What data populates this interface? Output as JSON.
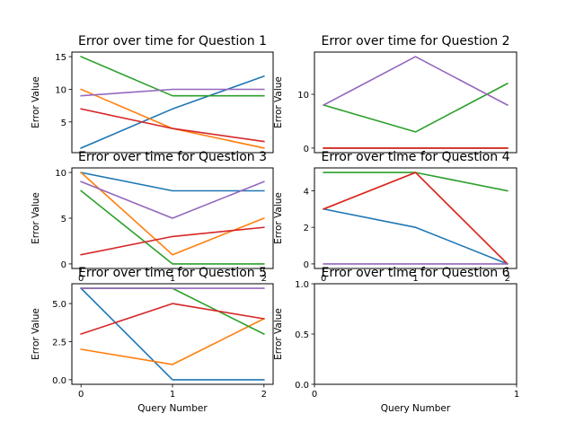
{
  "colors": [
    "#1f77b4",
    "#ff7f0e",
    "#2ca02c",
    "#d62728",
    "#9467bd"
  ],
  "chart_data": [
    {
      "type": "line",
      "title": "Error over time for Question 1",
      "xlabel": "",
      "ylabel": "Error Value",
      "x": [
        0,
        1,
        2
      ],
      "xticks": [],
      "yticks": [
        5,
        10,
        15
      ],
      "xlim": [
        -0.1,
        2.1
      ],
      "ylim": [
        0.3,
        15.7
      ],
      "series": [
        {
          "values": [
            1,
            7,
            12
          ]
        },
        {
          "values": [
            10,
            4,
            1
          ]
        },
        {
          "values": [
            15,
            9,
            9
          ]
        },
        {
          "values": [
            7,
            4,
            2
          ]
        },
        {
          "values": [
            9,
            10,
            10
          ]
        }
      ]
    },
    {
      "type": "line",
      "title": "Error over time for Question 2",
      "xlabel": "",
      "ylabel": "Error Value",
      "x": [
        0,
        1,
        2
      ],
      "xticks": [],
      "yticks": [
        0,
        10
      ],
      "xlim": [
        -0.1,
        2.1
      ],
      "ylim": [
        -0.85,
        17.85
      ],
      "series": [
        {
          "values": [
            0,
            0,
            0
          ]
        },
        {
          "values": [
            0,
            0,
            0
          ]
        },
        {
          "values": [
            8,
            3,
            12
          ]
        },
        {
          "values": [
            0,
            0,
            0
          ]
        },
        {
          "values": [
            8,
            17,
            8
          ]
        }
      ]
    },
    {
      "type": "line",
      "title": "Error over time for Question 3",
      "xlabel": "",
      "ylabel": "Error Value",
      "x": [
        0,
        1,
        2
      ],
      "xticks": [
        0,
        1,
        2
      ],
      "yticks": [
        0,
        5,
        10
      ],
      "xlim": [
        -0.1,
        2.1
      ],
      "ylim": [
        -0.5,
        10.5
      ],
      "series": [
        {
          "values": [
            10,
            8,
            8
          ]
        },
        {
          "values": [
            10,
            1,
            5
          ]
        },
        {
          "values": [
            8,
            0,
            0
          ]
        },
        {
          "values": [
            1,
            3,
            4
          ]
        },
        {
          "values": [
            9,
            5,
            9
          ]
        }
      ]
    },
    {
      "type": "line",
      "title": "Error over time for Question 4",
      "xlabel": "",
      "ylabel": "Error Value",
      "x": [
        0,
        1,
        2
      ],
      "xticks": [
        0,
        1,
        2
      ],
      "yticks": [
        0,
        2,
        4
      ],
      "xlim": [
        -0.1,
        2.1
      ],
      "ylim": [
        -0.25,
        5.25
      ],
      "series": [
        {
          "values": [
            3,
            2,
            0
          ]
        },
        {
          "values": [
            3,
            5,
            0
          ]
        },
        {
          "values": [
            5,
            5,
            4
          ]
        },
        {
          "values": [
            3,
            5,
            0
          ]
        },
        {
          "values": [
            0,
            0,
            0
          ]
        }
      ]
    },
    {
      "type": "line",
      "title": "Error over time for Question 5",
      "xlabel": "Query Number",
      "ylabel": "Error Value",
      "x": [
        0,
        1,
        2
      ],
      "xticks": [
        0,
        1,
        2
      ],
      "yticks": [
        0.0,
        2.5,
        5.0
      ],
      "ytick_labels": [
        "0.0",
        "2.5",
        "5.0"
      ],
      "xlim": [
        -0.1,
        2.1
      ],
      "ylim": [
        -0.3,
        6.3
      ],
      "series": [
        {
          "values": [
            6,
            0,
            0
          ]
        },
        {
          "values": [
            2,
            1,
            4
          ]
        },
        {
          "values": [
            6,
            6,
            3
          ]
        },
        {
          "values": [
            3,
            5,
            4
          ]
        },
        {
          "values": [
            6,
            6,
            6
          ]
        }
      ]
    },
    {
      "type": "line",
      "title": "Error over time for Question 6",
      "xlabel": "Query Number",
      "ylabel": "Error Value",
      "x": [],
      "xticks": [
        0,
        1
      ],
      "yticks": [
        0.0,
        0.5,
        1.0
      ],
      "ytick_labels": [
        "0.0",
        "0.5",
        "1.0"
      ],
      "xlim": [
        0,
        1
      ],
      "ylim": [
        0,
        1
      ],
      "series": []
    }
  ]
}
